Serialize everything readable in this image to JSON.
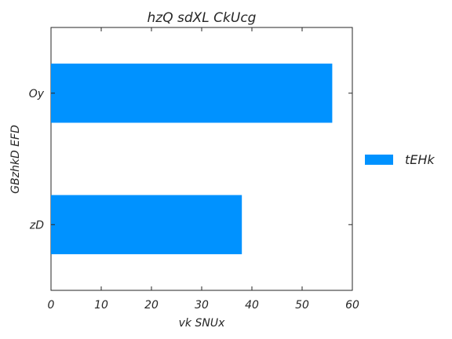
{
  "chart_data": {
    "type": "bar",
    "orientation": "horizontal",
    "title": "hzQ sdXL CkUcg",
    "xlabel": "vk SNUx",
    "ylabel": "GBzhkD EFD",
    "categories": [
      "zD",
      "Oy"
    ],
    "series": [
      {
        "name": "tEHk",
        "values": [
          38,
          56
        ],
        "color": "#0092ff"
      }
    ],
    "xlim": [
      0,
      60
    ],
    "xticks": [
      0,
      10,
      20,
      30,
      40,
      50,
      60
    ],
    "grid": false,
    "legend_position": "right"
  }
}
